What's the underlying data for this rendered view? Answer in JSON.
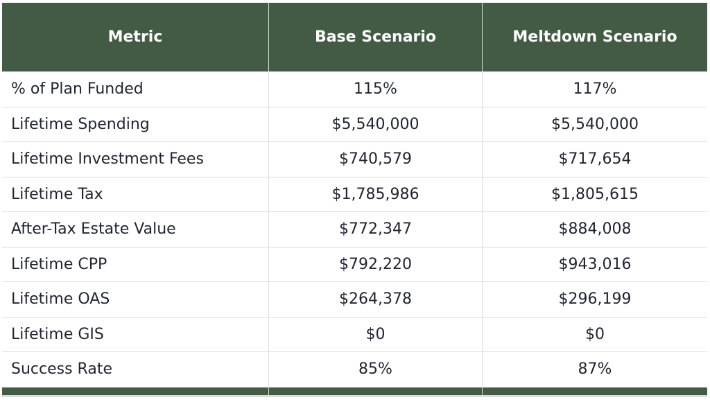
{
  "table": {
    "headers": [
      "Metric",
      "Base Scenario",
      "Meltdown Scenario"
    ],
    "rows": [
      [
        "% of Plan Funded",
        "115%",
        "117%"
      ],
      [
        "Lifetime Spending",
        "$5,540,000",
        "$5,540,000"
      ],
      [
        "Lifetime Investment Fees",
        "$740,579",
        "$717,654"
      ],
      [
        "Lifetime Tax",
        "$1,785,986",
        "$1,805,615"
      ],
      [
        "After-Tax Estate Value",
        "$772,347",
        "$884,008"
      ],
      [
        "Lifetime CPP",
        "$792,220",
        "$943,016"
      ],
      [
        "Lifetime OAS",
        "$264,378",
        "$296,199"
      ],
      [
        "Lifetime GIS",
        "$0",
        "$0"
      ],
      [
        "Success Rate",
        "85%",
        "87%"
      ]
    ]
  },
  "colors": {
    "header_background": "#435b45",
    "header_text": "#ffffff",
    "grid_lines": "#dcdcdc"
  }
}
